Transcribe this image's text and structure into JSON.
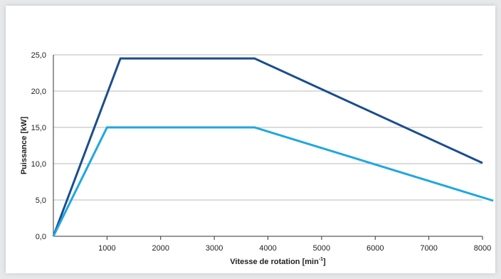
{
  "chart_data": {
    "type": "line",
    "xlabel": "Vitesse de rotation [min",
    "xlabel_sup": "-1",
    "xlabel_end": "]",
    "ylabel": "Puissance [kW]",
    "xlim": [
      0,
      8000
    ],
    "ylim": [
      0,
      25
    ],
    "grid": "horizontal",
    "x_ticks": [
      {
        "v": 1000,
        "label": "1000"
      },
      {
        "v": 2000,
        "label": "2000"
      },
      {
        "v": 3000,
        "label": "3000"
      },
      {
        "v": 4000,
        "label": "4000"
      },
      {
        "v": 5000,
        "label": "5000"
      },
      {
        "v": 6000,
        "label": "6000"
      },
      {
        "v": 7000,
        "label": "7000"
      },
      {
        "v": 8000,
        "label": "8000"
      }
    ],
    "y_ticks": [
      {
        "v": 0,
        "label": "0,0"
      },
      {
        "v": 5,
        "label": "5,0"
      },
      {
        "v": 10,
        "label": "10,0"
      },
      {
        "v": 15,
        "label": "15,0"
      },
      {
        "v": 20,
        "label": "20,0"
      },
      {
        "v": 25,
        "label": "25,0"
      }
    ],
    "series": [
      {
        "color": "#1a4e8c",
        "points": [
          [
            0,
            0
          ],
          [
            1250,
            24.5
          ],
          [
            3750,
            24.5
          ],
          [
            8000,
            10.1
          ]
        ]
      },
      {
        "color": "#1ea7e1",
        "points": [
          [
            0,
            0
          ],
          [
            1000,
            15.0
          ],
          [
            3750,
            15.0
          ],
          [
            8200,
            4.9
          ]
        ]
      }
    ]
  }
}
